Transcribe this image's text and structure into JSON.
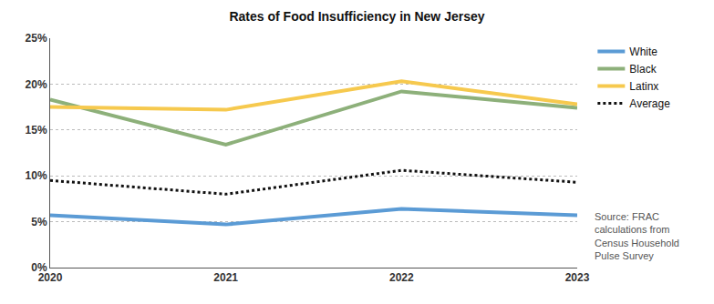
{
  "chart_data": {
    "type": "line",
    "title": "Rates of Food Insufficiency in New Jersey",
    "categories": [
      "2020",
      "2021",
      "2022",
      "2023"
    ],
    "series": [
      {
        "name": "White",
        "color": "#5b9bd5",
        "line_style": "solid",
        "values": [
          5.7,
          4.7,
          6.4,
          5.7
        ]
      },
      {
        "name": "Black",
        "color": "#8db07a",
        "line_style": "solid",
        "values": [
          18.3,
          13.4,
          19.2,
          17.4
        ]
      },
      {
        "name": "Latinx",
        "color": "#f6c94e",
        "line_style": "solid",
        "values": [
          17.5,
          17.2,
          20.3,
          17.8
        ]
      },
      {
        "name": "Average",
        "color": "#111111",
        "line_style": "dotted",
        "values": [
          9.5,
          8.0,
          10.6,
          9.3
        ]
      }
    ],
    "ylim": [
      0,
      25
    ],
    "yticks": [
      {
        "value": 0,
        "label": "0%"
      },
      {
        "value": 5,
        "label": "5%"
      },
      {
        "value": 10,
        "label": "10%"
      },
      {
        "value": 15,
        "label": "15%"
      },
      {
        "value": 20,
        "label": "20%"
      },
      {
        "value": 25,
        "label": "25%"
      }
    ],
    "grid": true,
    "legend": "right",
    "source": "Source: FRAC calculations from Census Household Pulse Survey"
  }
}
